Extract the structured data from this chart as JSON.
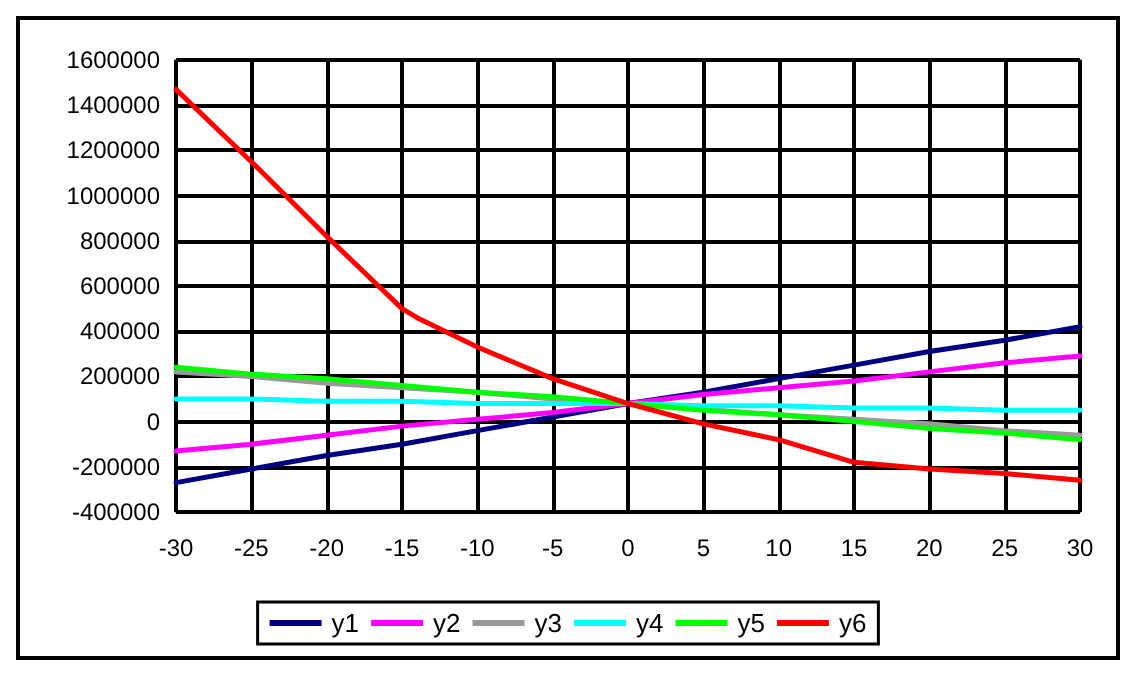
{
  "chart_data": {
    "type": "line",
    "x": [
      -30,
      -25,
      -20,
      -15,
      -10,
      -5,
      0,
      5,
      10,
      15,
      20,
      25,
      30
    ],
    "xlim": [
      -30,
      30
    ],
    "xticks": [
      -30,
      -25,
      -20,
      -15,
      -10,
      -5,
      0,
      5,
      10,
      15,
      20,
      25,
      30
    ],
    "ylim": [
      -400000,
      1600000
    ],
    "yticks": [
      -400000,
      -200000,
      0,
      200000,
      400000,
      600000,
      800000,
      1000000,
      1200000,
      1400000,
      1600000
    ],
    "grid": true,
    "legend": "bottom",
    "marker": "none",
    "line_style": "solid",
    "series": [
      {
        "name": "y1",
        "color": "#000080",
        "values": [
          -270000,
          -210000,
          -150000,
          -100000,
          -40000,
          20000,
          80000,
          130000,
          190000,
          250000,
          310000,
          360000,
          420000
        ]
      },
      {
        "name": "y2",
        "color": "#ff00ff",
        "values": [
          -130000,
          -100000,
          -60000,
          -20000,
          10000,
          40000,
          80000,
          120000,
          150000,
          180000,
          220000,
          260000,
          290000
        ]
      },
      {
        "name": "y3",
        "color": "#999999",
        "values": [
          220000,
          200000,
          170000,
          150000,
          130000,
          100000,
          80000,
          null,
          30000,
          10000,
          -10000,
          -40000,
          -60000
        ]
      },
      {
        "name": "y4",
        "color": "#00ffff",
        "values": [
          100000,
          100000,
          90000,
          90000,
          80000,
          80000,
          80000,
          70000,
          70000,
          60000,
          60000,
          50000,
          50000
        ]
      },
      {
        "name": "y5",
        "color": "#00ff00",
        "values": [
          240000,
          210000,
          190000,
          160000,
          130000,
          110000,
          80000,
          50000,
          30000,
          0,
          -30000,
          -50000,
          -80000
        ]
      },
      {
        "name": "y6",
        "color": "#ff0000",
        "x": [
          -30,
          -25,
          -20,
          -15,
          -14,
          -10,
          -5,
          0,
          5,
          10,
          15,
          20,
          25,
          30
        ],
        "values": [
          1470000,
          1150000,
          820000,
          500000,
          460000,
          330000,
          190000,
          80000,
          -10000,
          -80000,
          -180000,
          -210000,
          -230000,
          -260000
        ]
      }
    ]
  }
}
